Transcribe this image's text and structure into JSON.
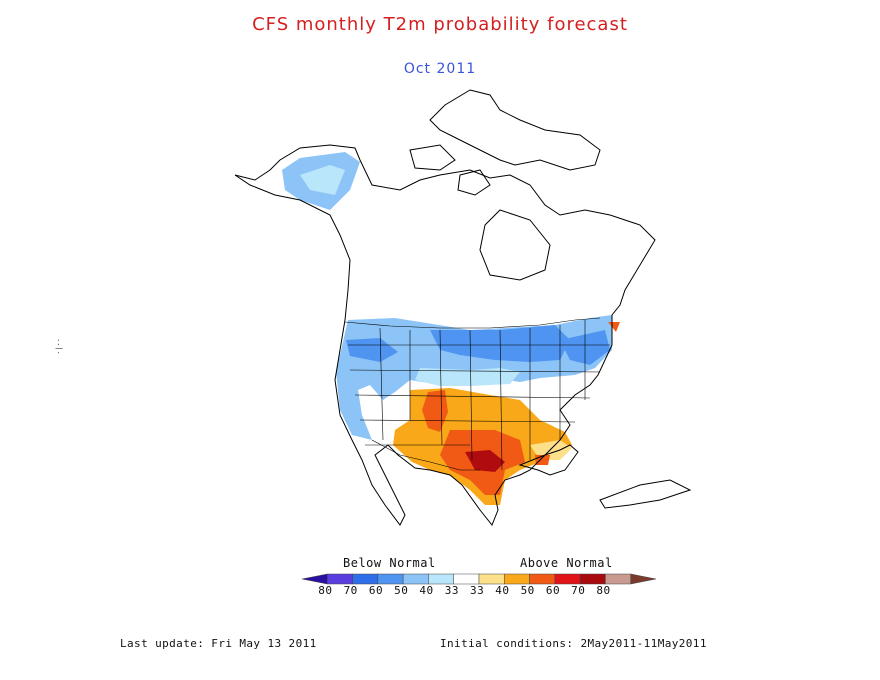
{
  "title": "CFS monthly T2m probability forecast",
  "subtitle": "Oct 2011",
  "legend": {
    "below_label": "Below Normal",
    "above_label": "Above Normal",
    "ticks": [
      "80",
      "70",
      "60",
      "50",
      "40",
      "33",
      "33",
      "40",
      "50",
      "60",
      "70",
      "80"
    ],
    "colors": [
      "#2a0fa0",
      "#5b3ee0",
      "#2e6ee8",
      "#4f94f0",
      "#8cc4f8",
      "#b9e6fb",
      "#ffffff",
      "#fde08a",
      "#f8a818",
      "#f05a14",
      "#e01418",
      "#a80a10",
      "#c89a90",
      "#7a3a2c"
    ]
  },
  "colors": {
    "below_normal_light": "#b9e6fb",
    "below_normal": "#8cc4f8",
    "below_normal_strong": "#4f94f0",
    "above_normal_weak": "#fde08a",
    "above_normal": "#f8a818",
    "above_normal_strong": "#f05a14",
    "above_normal_max": "#b00c10"
  },
  "footer": {
    "last_update": "Last update: Fri May 13 2011",
    "initial_conditions": "Initial conditions: 2May2011-11May2011"
  }
}
